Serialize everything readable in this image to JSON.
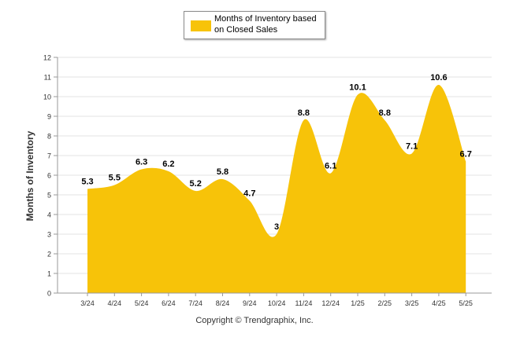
{
  "chart_data": {
    "type": "area",
    "categories": [
      "3/24",
      "4/24",
      "5/24",
      "6/24",
      "7/24",
      "8/24",
      "9/24",
      "10/24",
      "11/24",
      "12/24",
      "1/25",
      "2/25",
      "3/25",
      "4/25",
      "5/25"
    ],
    "series": [
      {
        "name": "Months of Inventory based on Closed Sales",
        "values": [
          5.3,
          5.5,
          6.3,
          6.2,
          5.2,
          5.8,
          4.7,
          3,
          8.8,
          6.1,
          10.1,
          8.8,
          7.1,
          10.6,
          6.7
        ],
        "labels": [
          "5.3",
          "5.5",
          "6.3",
          "6.2",
          "5.2",
          "5.8",
          "4.7",
          "3",
          "8.8",
          "6.1",
          "10.1",
          "8.8",
          "7.1",
          "10.6",
          "6.7"
        ],
        "color": "#F7C309"
      }
    ],
    "y_ticks": [
      "0",
      "1",
      "2",
      "3",
      "4",
      "5",
      "6",
      "7",
      "8",
      "9",
      "10",
      "11",
      "12"
    ],
    "ylim": [
      0,
      12
    ],
    "ylabel": "Months of Inventory",
    "xlabel": "",
    "grid": true,
    "legend_position": "top-center"
  },
  "footer": {
    "copyright": "Copyright © Trendgraphix, Inc."
  }
}
